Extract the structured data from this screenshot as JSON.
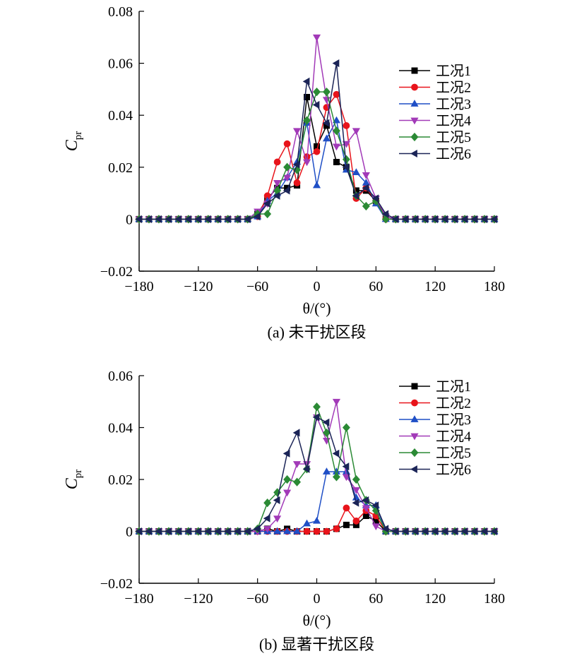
{
  "chart_data": [
    {
      "type": "line",
      "caption": "(a) 未干扰区段",
      "xlabel": "θ/(°)",
      "ylabel": "Cpr",
      "ylabel_main": "C",
      "ylabel_sub": "pr",
      "xlim": [
        -180,
        180
      ],
      "ylim": [
        -0.02,
        0.08
      ],
      "xticks": [
        -180,
        -120,
        -60,
        0,
        60,
        120,
        180
      ],
      "xtick_labels": [
        "−180",
        "−120",
        "−60",
        "0",
        "60",
        "120",
        "180"
      ],
      "yticks": [
        -0.02,
        0,
        0.02,
        0.04,
        0.06,
        0.08
      ],
      "ytick_labels": [
        "−0.02",
        "0",
        "0.02",
        "0.04",
        "0.06",
        "0.08"
      ],
      "legend_position": "top-right",
      "x": [
        -180,
        -170,
        -160,
        -150,
        -140,
        -130,
        -120,
        -110,
        -100,
        -90,
        -80,
        -70,
        -60,
        -50,
        -40,
        -30,
        -20,
        -10,
        0,
        10,
        20,
        30,
        40,
        50,
        60,
        70,
        80,
        90,
        100,
        110,
        120,
        130,
        140,
        150,
        160,
        170,
        180
      ],
      "series": [
        {
          "name": "工况1",
          "color": "#000000",
          "marker": "square",
          "values": [
            0,
            0,
            0,
            0,
            0,
            0,
            0,
            0,
            0,
            0,
            0,
            0,
            0.002,
            0.008,
            0.012,
            0.012,
            0.013,
            0.047,
            0.028,
            0.036,
            0.022,
            0.02,
            0.011,
            0.011,
            0.007,
            0.001,
            0,
            0,
            0,
            0,
            0,
            0,
            0,
            0,
            0,
            0,
            0
          ]
        },
        {
          "name": "工况2",
          "color": "#e8141b",
          "marker": "circle",
          "values": [
            0,
            0,
            0,
            0,
            0,
            0,
            0,
            0,
            0,
            0,
            0,
            0,
            0.001,
            0.009,
            0.022,
            0.029,
            0.014,
            0.024,
            0.026,
            0.043,
            0.048,
            0.036,
            0.008,
            0.012,
            0.007,
            0,
            0,
            0,
            0,
            0,
            0,
            0,
            0,
            0,
            0,
            0,
            0
          ]
        },
        {
          "name": "工况3",
          "color": "#1f4fc6",
          "marker": "triangle-up",
          "values": [
            0,
            0,
            0,
            0,
            0,
            0,
            0,
            0,
            0,
            0,
            0,
            0,
            0.001,
            0.007,
            0.01,
            0.016,
            0.022,
            0.037,
            0.013,
            0.031,
            0.038,
            0.019,
            0.018,
            0.014,
            0.006,
            0,
            0,
            0,
            0,
            0,
            0,
            0,
            0,
            0,
            0,
            0,
            0
          ]
        },
        {
          "name": "工况4",
          "color": "#a23ab8",
          "marker": "triangle-down",
          "values": [
            0,
            0,
            0,
            0,
            0,
            0,
            0,
            0,
            0,
            0,
            0,
            0,
            0.003,
            0.006,
            0.014,
            0.016,
            0.034,
            0.022,
            0.07,
            0.046,
            0.028,
            0.029,
            0.034,
            0.017,
            0.008,
            0.001,
            0,
            0,
            0,
            0,
            0,
            0,
            0,
            0,
            0,
            0,
            0
          ]
        },
        {
          "name": "工况5",
          "color": "#2b8a35",
          "marker": "diamond",
          "values": [
            0,
            0,
            0,
            0,
            0,
            0,
            0,
            0,
            0,
            0,
            0,
            0,
            0.002,
            0.002,
            0.011,
            0.02,
            0.019,
            0.038,
            0.049,
            0.049,
            0.034,
            0.023,
            0.009,
            0.005,
            0.007,
            0,
            0,
            0,
            0,
            0,
            0,
            0,
            0,
            0,
            0,
            0,
            0
          ]
        },
        {
          "name": "工况6",
          "color": "#1b2457",
          "marker": "triangle-left",
          "values": [
            0,
            0,
            0,
            0,
            0,
            0,
            0,
            0,
            0,
            0,
            0,
            0,
            0.001,
            0.006,
            0.009,
            0.011,
            0.021,
            0.053,
            0.044,
            0.037,
            0.06,
            0.02,
            0.009,
            0.012,
            0.008,
            0.002,
            0,
            0,
            0,
            0,
            0,
            0,
            0,
            0,
            0,
            0,
            0
          ]
        }
      ]
    },
    {
      "type": "line",
      "caption": "(b) 显著干扰区段",
      "xlabel": "θ/(°)",
      "ylabel": "Cpr",
      "ylabel_main": "C",
      "ylabel_sub": "pr",
      "xlim": [
        -180,
        180
      ],
      "ylim": [
        -0.02,
        0.06
      ],
      "xticks": [
        -180,
        -120,
        -60,
        0,
        60,
        120,
        180
      ],
      "xtick_labels": [
        "−180",
        "−120",
        "−60",
        "0",
        "60",
        "120",
        "180"
      ],
      "yticks": [
        -0.02,
        0,
        0.02,
        0.04,
        0.06
      ],
      "ytick_labels": [
        "−0.02",
        "0",
        "0.02",
        "0.04",
        "0.06"
      ],
      "legend_position": "top-right",
      "x": [
        -180,
        -170,
        -160,
        -150,
        -140,
        -130,
        -120,
        -110,
        -100,
        -90,
        -80,
        -70,
        -60,
        -50,
        -40,
        -30,
        -20,
        -10,
        0,
        10,
        20,
        30,
        40,
        50,
        60,
        70,
        80,
        90,
        100,
        110,
        120,
        130,
        140,
        150,
        160,
        170,
        180
      ],
      "series": [
        {
          "name": "工况1",
          "color": "#000000",
          "marker": "square",
          "values": [
            0,
            0,
            0,
            0,
            0,
            0,
            0,
            0,
            0,
            0,
            0,
            0,
            0,
            0.001,
            0,
            0.001,
            0,
            0,
            0,
            0,
            0.001,
            0.0025,
            0.0025,
            0.006,
            0.004,
            0,
            0,
            0,
            0,
            0,
            0,
            0,
            0,
            0,
            0,
            0,
            0
          ]
        },
        {
          "name": "工况2",
          "color": "#e8141b",
          "marker": "circle",
          "values": [
            0,
            0,
            0,
            0,
            0,
            0,
            0,
            0,
            0,
            0,
            0,
            0,
            0,
            0,
            0,
            0,
            0,
            0,
            0,
            0,
            0.001,
            0.009,
            0.004,
            0.008,
            0.006,
            0,
            0,
            0,
            0,
            0,
            0,
            0,
            0,
            0,
            0,
            0,
            0
          ]
        },
        {
          "name": "工况3",
          "color": "#1f4fc6",
          "marker": "triangle-up",
          "values": [
            0,
            0,
            0,
            0,
            0,
            0,
            0,
            0,
            0,
            0,
            0,
            0,
            0,
            0,
            0,
            0,
            0,
            0.003,
            0.004,
            0.023,
            0.023,
            0.023,
            0.013,
            0.01,
            0.01,
            0,
            0,
            0,
            0,
            0,
            0,
            0,
            0,
            0,
            0,
            0,
            0
          ]
        },
        {
          "name": "工况4",
          "color": "#a23ab8",
          "marker": "triangle-down",
          "values": [
            0,
            0,
            0,
            0,
            0,
            0,
            0,
            0,
            0,
            0,
            0,
            0,
            0,
            0.001,
            0.005,
            0.015,
            0.026,
            0.026,
            0.044,
            0.035,
            0.05,
            0.021,
            0.016,
            0.009,
            0.002,
            0,
            0,
            0,
            0,
            0,
            0,
            0,
            0,
            0,
            0,
            0,
            0
          ]
        },
        {
          "name": "工况5",
          "color": "#2b8a35",
          "marker": "diamond",
          "values": [
            0,
            0,
            0,
            0,
            0,
            0,
            0,
            0,
            0,
            0,
            0,
            0,
            0.001,
            0.011,
            0.015,
            0.02,
            0.019,
            0.024,
            0.048,
            0.038,
            0.021,
            0.04,
            0.02,
            0.012,
            0.008,
            0,
            0,
            0,
            0,
            0,
            0,
            0,
            0,
            0,
            0,
            0,
            0
          ]
        },
        {
          "name": "工况6",
          "color": "#1b2457",
          "marker": "triangle-left",
          "values": [
            0,
            0,
            0,
            0,
            0,
            0,
            0,
            0,
            0,
            0,
            0,
            0,
            0.001,
            0.005,
            0.012,
            0.03,
            0.038,
            0.024,
            0.044,
            0.042,
            0.03,
            0.025,
            0.011,
            0.012,
            0.01,
            0.001,
            0,
            0,
            0,
            0,
            0,
            0,
            0,
            0,
            0,
            0,
            0
          ]
        }
      ]
    }
  ]
}
